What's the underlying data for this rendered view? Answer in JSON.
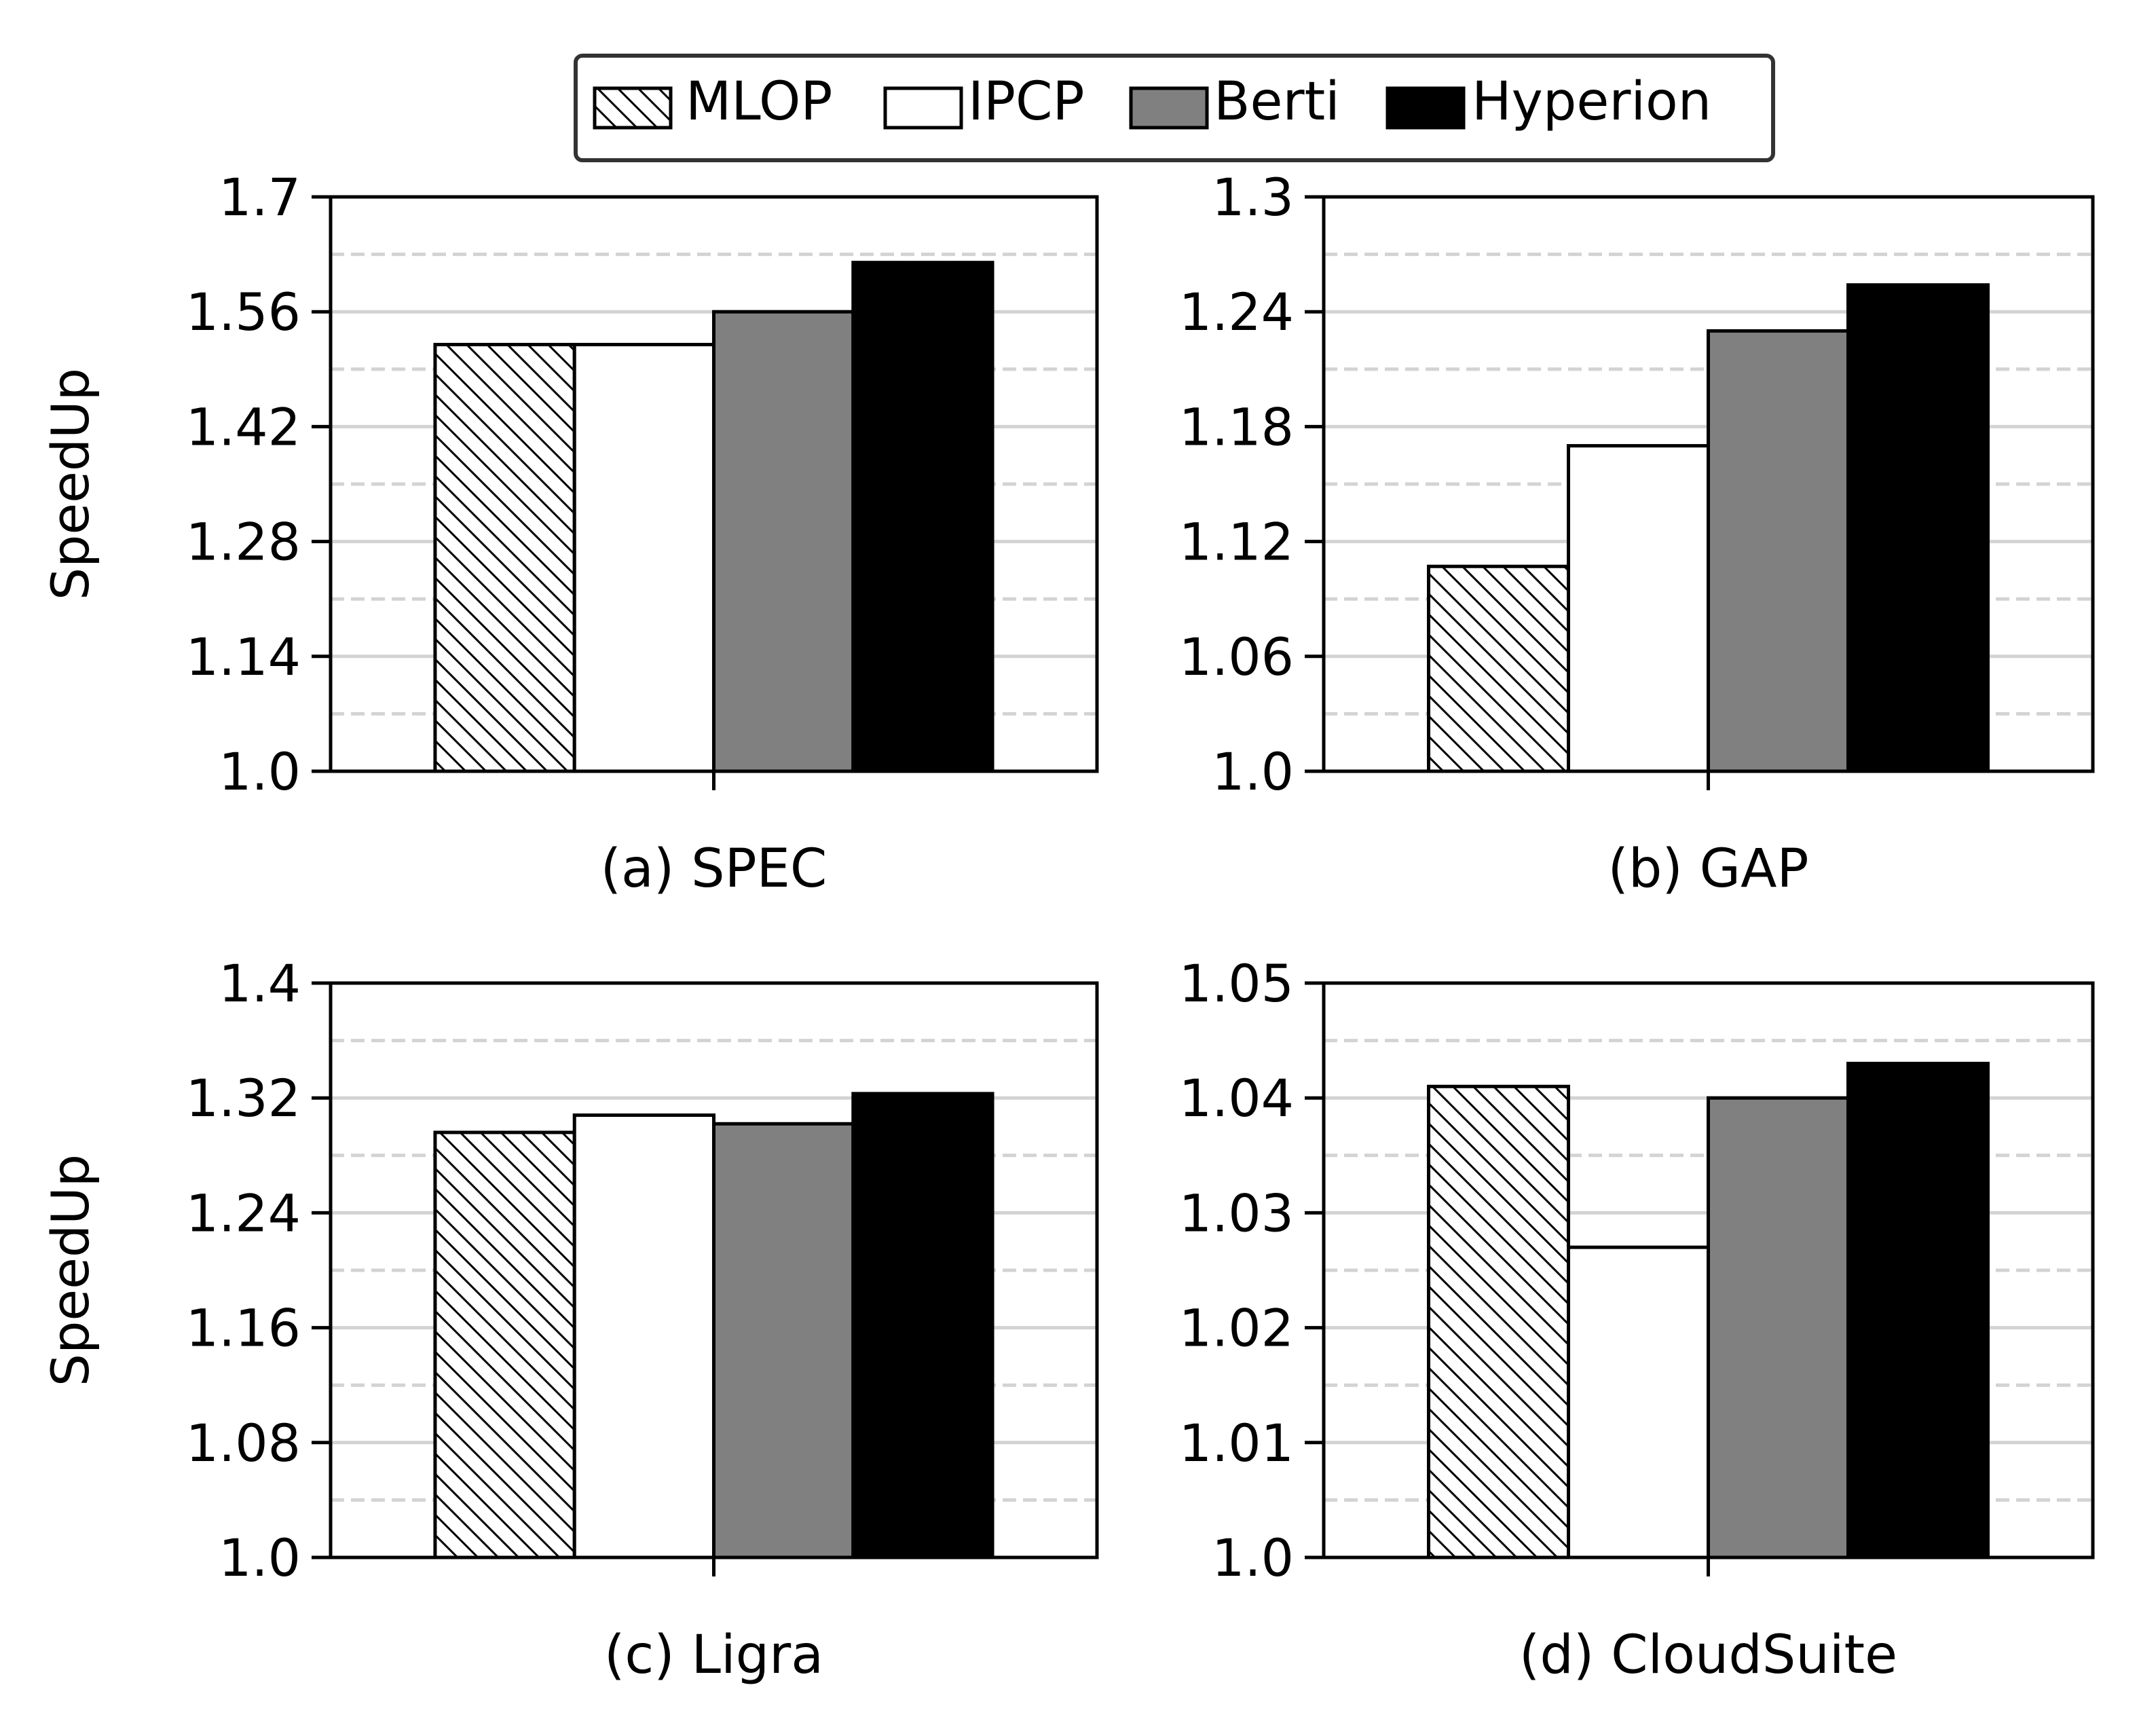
{
  "legend": {
    "items": [
      {
        "label": "MLOP",
        "fill": "#ffffff",
        "pattern": "hatch"
      },
      {
        "label": "IPCP",
        "fill": "#ffffff",
        "pattern": "none"
      },
      {
        "label": "Berti",
        "fill": "#808080",
        "pattern": "none"
      },
      {
        "label": "Hyperion",
        "fill": "#000000",
        "pattern": "none"
      }
    ]
  },
  "chart_data": [
    {
      "type": "bar",
      "subplot_label": "(a) SPEC",
      "ylabel": "SpeedUp",
      "ylim": [
        1.0,
        1.7
      ],
      "yticks": [
        "1.0",
        "1.14",
        "1.28",
        "1.42",
        "1.56",
        "1.7"
      ],
      "series": [
        {
          "name": "MLOP",
          "values": [
            1.52
          ]
        },
        {
          "name": "IPCP",
          "values": [
            1.52
          ]
        },
        {
          "name": "Berti",
          "values": [
            1.56
          ]
        },
        {
          "name": "Hyperion",
          "values": [
            1.62
          ]
        }
      ]
    },
    {
      "type": "bar",
      "subplot_label": "(b) GAP",
      "ylabel": "",
      "ylim": [
        1.0,
        1.3
      ],
      "yticks": [
        "1.0",
        "1.06",
        "1.12",
        "1.18",
        "1.24",
        "1.3"
      ],
      "series": [
        {
          "name": "MLOP",
          "values": [
            1.107
          ]
        },
        {
          "name": "IPCP",
          "values": [
            1.17
          ]
        },
        {
          "name": "Berti",
          "values": [
            1.23
          ]
        },
        {
          "name": "Hyperion",
          "values": [
            1.254
          ]
        }
      ]
    },
    {
      "type": "bar",
      "subplot_label": "(c) Ligra",
      "ylabel": "SpeedUp",
      "ylim": [
        1.0,
        1.4
      ],
      "yticks": [
        "1.0",
        "1.08",
        "1.16",
        "1.24",
        "1.32",
        "1.4"
      ],
      "series": [
        {
          "name": "MLOP",
          "values": [
            1.296
          ]
        },
        {
          "name": "IPCP",
          "values": [
            1.308
          ]
        },
        {
          "name": "Berti",
          "values": [
            1.302
          ]
        },
        {
          "name": "Hyperion",
          "values": [
            1.323
          ]
        }
      ]
    },
    {
      "type": "bar",
      "subplot_label": "(d) CloudSuite",
      "ylabel": "",
      "ylim": [
        1.0,
        1.05
      ],
      "yticks": [
        "1.0",
        "1.01",
        "1.02",
        "1.03",
        "1.04",
        "1.05"
      ],
      "series": [
        {
          "name": "MLOP",
          "values": [
            1.041
          ]
        },
        {
          "name": "IPCP",
          "values": [
            1.027
          ]
        },
        {
          "name": "Berti",
          "values": [
            1.04
          ]
        },
        {
          "name": "Hyperion",
          "values": [
            1.043
          ]
        }
      ]
    }
  ]
}
